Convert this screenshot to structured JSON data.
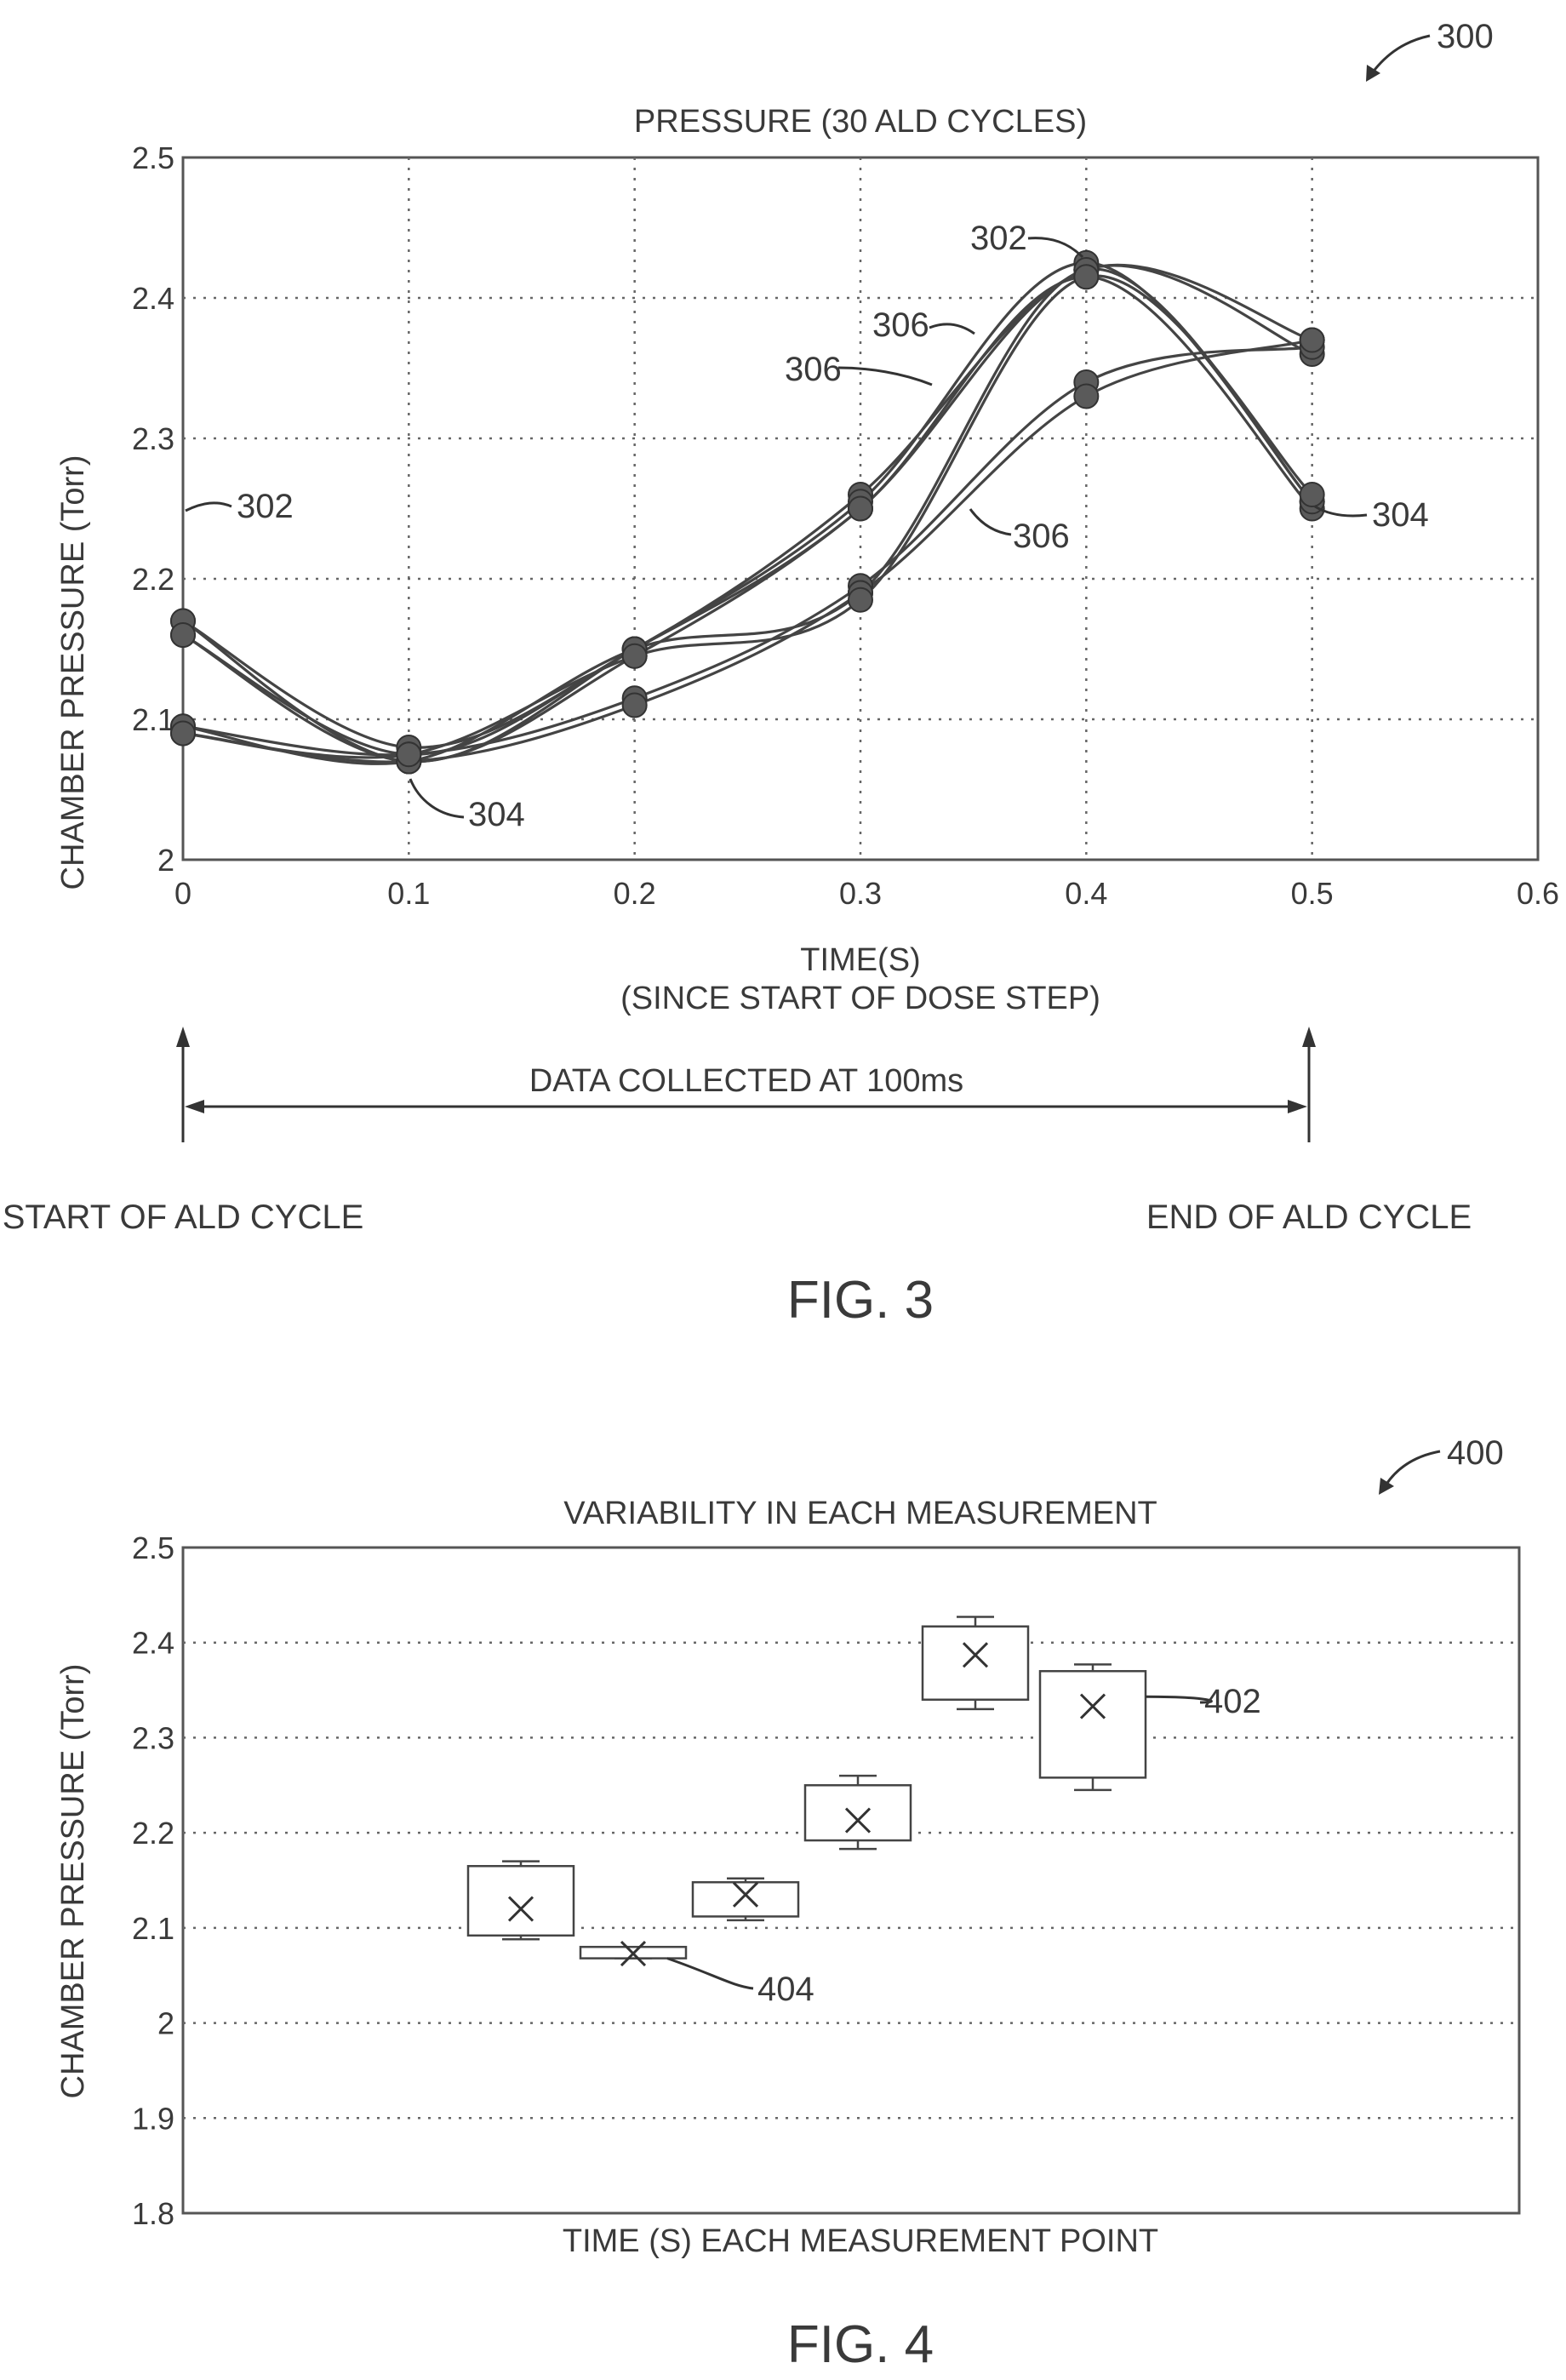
{
  "fig3": {
    "ref_number": "300",
    "caption": "FIG. 3",
    "start_label": "START OF ALD CYCLE",
    "end_label": "END OF ALD CYCLE",
    "interval_label": "DATA COLLECTED AT 100ms",
    "callouts": [
      {
        "text": "302",
        "target": "peak curves at t=0.4"
      },
      {
        "text": "306",
        "target": "upper rising curves"
      },
      {
        "text": "306",
        "target": "middle rising curves"
      },
      {
        "text": "306",
        "target": "lower rising curves"
      },
      {
        "text": "302",
        "target": "curve start at t=0"
      },
      {
        "text": "304",
        "target": "curve minimum at t=0.1"
      },
      {
        "text": "304",
        "target": "curve end at t=0.5"
      }
    ]
  },
  "fig4": {
    "ref_number": "400",
    "caption": "FIG. 4",
    "callouts": [
      {
        "text": "402",
        "target": "last box"
      },
      {
        "text": "404",
        "target": "second box"
      }
    ]
  },
  "chart_data": [
    {
      "type": "line",
      "title": "PRESSURE (30 ALD CYCLES)",
      "xlabel": "TIME(S)",
      "xlabel2": "(SINCE START OF DOSE STEP)",
      "ylabel": "CHAMBER PRESSURE (Torr)",
      "xlim": [
        0,
        0.6
      ],
      "ylim": [
        2,
        2.5
      ],
      "xticks": [
        "0",
        "0.1",
        "0.2",
        "0.3",
        "0.4",
        "0.5",
        "0.6"
      ],
      "yticks": [
        "2",
        "2.1",
        "2.2",
        "2.3",
        "2.4",
        "2.5"
      ],
      "grid": true,
      "x": [
        0,
        0.1,
        0.2,
        0.3,
        0.4,
        0.5
      ],
      "series": [
        {
          "values": [
            2.17,
            2.08,
            2.15,
            2.26,
            2.42,
            2.37
          ]
        },
        {
          "values": [
            2.16,
            2.075,
            2.15,
            2.25,
            2.42,
            2.36
          ]
        },
        {
          "values": [
            2.17,
            2.07,
            2.15,
            2.255,
            2.425,
            2.255
          ]
        },
        {
          "values": [
            2.16,
            2.07,
            2.145,
            2.25,
            2.415,
            2.25
          ]
        },
        {
          "values": [
            2.095,
            2.075,
            2.115,
            2.195,
            2.34,
            2.365
          ]
        },
        {
          "values": [
            2.09,
            2.07,
            2.11,
            2.19,
            2.33,
            2.37
          ]
        },
        {
          "values": [
            2.095,
            2.07,
            2.15,
            2.19,
            2.42,
            2.255
          ]
        },
        {
          "values": [
            2.09,
            2.075,
            2.145,
            2.185,
            2.415,
            2.26
          ]
        }
      ]
    },
    {
      "type": "box",
      "title": "VARIABILITY IN EACH MEASUREMENT",
      "xlabel": "TIME (S) EACH MEASUREMENT POINT",
      "ylabel": "CHAMBER PRESSURE (Torr)",
      "ylim": [
        1.8,
        2.5
      ],
      "yticks": [
        "1.8",
        "1.9",
        "2",
        "2.1",
        "2.2",
        "2.3",
        "2.4",
        "2.5"
      ],
      "grid": true,
      "boxes": [
        {
          "min": 2.088,
          "q1": 2.092,
          "mean": 2.12,
          "q3": 2.165,
          "max": 2.17
        },
        {
          "min": 2.068,
          "q1": 2.068,
          "mean": 2.073,
          "q3": 2.08,
          "max": 2.08
        },
        {
          "min": 2.108,
          "q1": 2.112,
          "mean": 2.135,
          "q3": 2.148,
          "max": 2.152
        },
        {
          "min": 2.183,
          "q1": 2.192,
          "mean": 2.213,
          "q3": 2.25,
          "max": 2.26
        },
        {
          "min": 2.33,
          "q1": 2.34,
          "mean": 2.387,
          "q3": 2.417,
          "max": 2.427
        },
        {
          "min": 2.245,
          "q1": 2.258,
          "mean": 2.333,
          "q3": 2.37,
          "max": 2.377
        }
      ]
    }
  ]
}
